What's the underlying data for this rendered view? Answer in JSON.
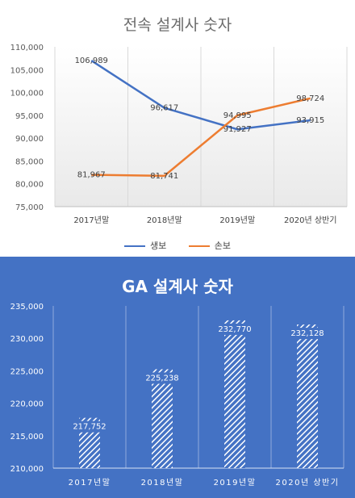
{
  "chart_data": [
    {
      "type": "line",
      "title": "전속 설계사 숫자",
      "categories": [
        "2017년말",
        "2018년말",
        "2019년말",
        "2020년 상반기"
      ],
      "ylim": [
        75000,
        110000
      ],
      "ytick_step": 5000,
      "grid": "vertical",
      "legend_position": "bottom",
      "series": [
        {
          "name": "생보",
          "color": "#4472c4",
          "values": [
            106989,
            96617,
            91927,
            93915
          ],
          "labels": [
            "106,989",
            "96,617",
            "91,927",
            "93,915"
          ]
        },
        {
          "name": "손보",
          "color": "#ed7d31",
          "values": [
            81967,
            81741,
            94995,
            98724
          ],
          "labels": [
            "81,967",
            "81,741",
            "94,995",
            "98,724"
          ]
        }
      ]
    },
    {
      "type": "bar",
      "title": "GA 설계사 숫자",
      "categories": [
        "2017년말",
        "2018년말",
        "2019년말",
        "2020년 상반기"
      ],
      "values": [
        217752,
        225238,
        232770,
        232128
      ],
      "labels": [
        "217,752",
        "225,238",
        "232,770",
        "232,128"
      ],
      "ylim": [
        210000,
        235000
      ],
      "ytick_step": 5000,
      "grid": "vertical",
      "fill": "hatched-white"
    }
  ]
}
